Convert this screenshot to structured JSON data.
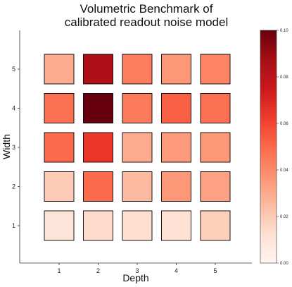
{
  "chart_data": {
    "type": "heatmap",
    "title_lines": [
      "Volumetric Benchmark of",
      "calibrated readout noise model"
    ],
    "xlabel": "Depth",
    "ylabel": "Width",
    "x": [
      1,
      2,
      3,
      4,
      5
    ],
    "y": [
      1,
      2,
      3,
      4,
      5
    ],
    "x_tick_labels": [
      "1",
      "2",
      "3",
      "4",
      "5"
    ],
    "y_tick_labels": [
      "1",
      "2",
      "3",
      "4",
      "5"
    ],
    "values": [
      [
        0.01,
        0.014,
        0.013,
        0.012,
        0.018
      ],
      [
        0.02,
        0.05,
        0.025,
        0.036,
        0.033
      ],
      [
        0.05,
        0.064,
        0.03,
        0.035,
        0.036
      ],
      [
        0.048,
        0.1,
        0.045,
        0.053,
        0.048
      ],
      [
        0.03,
        0.085,
        0.044,
        0.036,
        0.042
      ]
    ],
    "colorbar": {
      "min": 0.0,
      "max": 0.1,
      "ticks": [
        "0.00",
        "0.02",
        "0.04",
        "0.06",
        "0.08",
        "0.10"
      ],
      "colormap": "Reds"
    },
    "grid": false,
    "colormap_stops": [
      "#fff5f0",
      "#fee0d2",
      "#fcbba1",
      "#fc9272",
      "#fb6a4a",
      "#ef3b2c",
      "#cb181d",
      "#a50f15",
      "#67000d"
    ]
  }
}
